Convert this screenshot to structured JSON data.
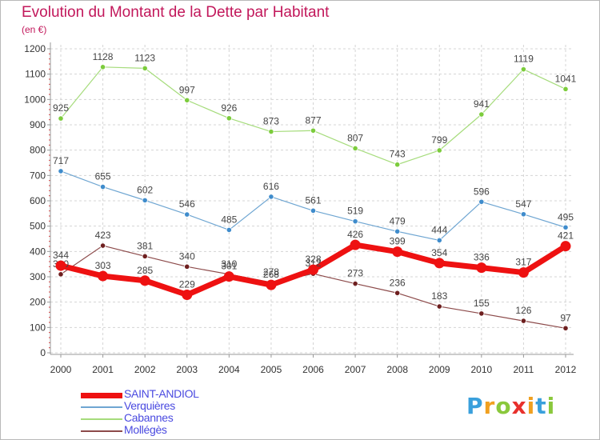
{
  "title": "Evolution du Montant de la Dette par Habitant",
  "subtitle": "(en €)",
  "logo": {
    "text": "Proxiti",
    "letter_colors": [
      "#3aa0dc",
      "#f0a020",
      "#8ac83c",
      "#e8302c",
      "#f0a020",
      "#3aa0dc",
      "#8ac83c"
    ]
  },
  "chart_data": {
    "type": "line",
    "x": [
      "2000",
      "2001",
      "2002",
      "2003",
      "2004",
      "2005",
      "2006",
      "2007",
      "2008",
      "2009",
      "2010",
      "2011",
      "2012"
    ],
    "y_ticks": [
      "0",
      "100",
      "200",
      "300",
      "400",
      "500",
      "600",
      "700",
      "800",
      "900",
      "1000",
      "1100",
      "1200"
    ],
    "ylim": [
      0,
      1200
    ],
    "grid": true,
    "legend_position": "bottom-left",
    "series": [
      {
        "name": "SAINT-ANDIOL",
        "color": "#ee1111",
        "marker_color": "#ee1111",
        "values": [
          344,
          303,
          285,
          229,
          301,
          268,
          328,
          426,
          399,
          354,
          336,
          317,
          421
        ]
      },
      {
        "name": "Verquières",
        "color": "#6fa6d2",
        "marker_color": "#3f8ccc",
        "values": [
          717,
          655,
          602,
          546,
          485,
          616,
          561,
          519,
          479,
          444,
          596,
          547,
          495
        ]
      },
      {
        "name": "Cabannes",
        "color": "#a6dc7c",
        "marker_color": "#7ccc3c",
        "values": [
          925,
          1128,
          1123,
          997,
          926,
          873,
          877,
          807,
          743,
          799,
          941,
          1119,
          1041
        ]
      },
      {
        "name": "Mollégès",
        "color": "#8c4a4a",
        "marker_color": "#6e1f1f",
        "values": [
          310,
          423,
          381,
          340,
          310,
          278,
          312,
          273,
          236,
          183,
          155,
          126,
          97
        ]
      }
    ]
  }
}
